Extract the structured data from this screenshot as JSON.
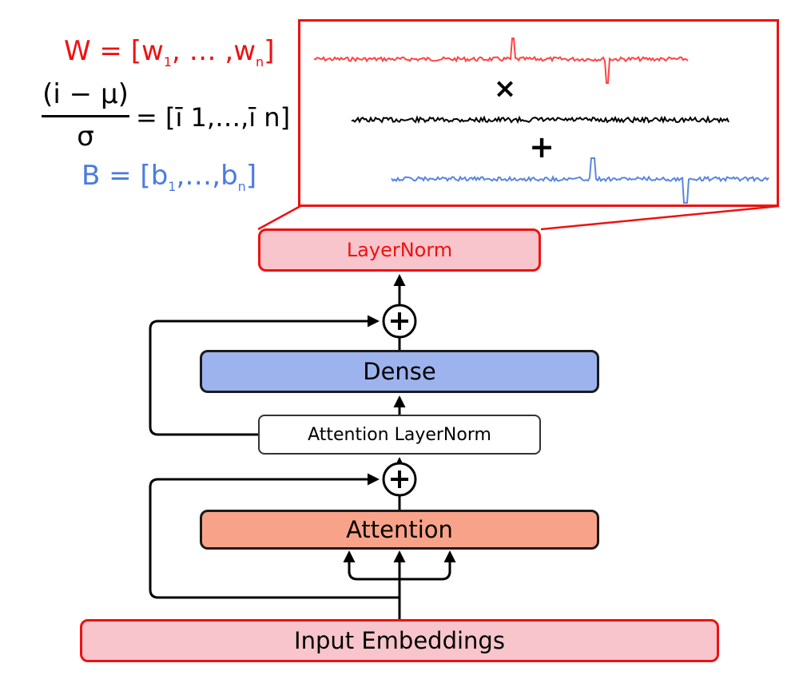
{
  "equations": {
    "weights": {
      "lhs": "W",
      "open": " = [w",
      "sub1": "1",
      "mid": ", … ,w",
      "subn": "n",
      "close": "]",
      "color": "#ee1111"
    },
    "normalized": {
      "numerator": "(i − μ)",
      "denominator": "σ",
      "rhs": "= [ī 1,…,ī n]"
    },
    "bias": {
      "lhs": "B",
      "open": " = [b",
      "sub1": "1",
      "mid": ",…,b",
      "subn": "n",
      "close": "]",
      "color": "#4a7be0"
    }
  },
  "zoom": {
    "operators": {
      "multiply": "×",
      "add": "+"
    },
    "signal_colors": {
      "weights": "#ff4444",
      "normalized": "#000000",
      "bias": "#5b86e0"
    }
  },
  "blocks": {
    "layernorm": "LayerNorm",
    "dense": "Dense",
    "attention_layernorm": "Attention LayerNorm",
    "attention": "Attention",
    "input_embeddings": "Input Embeddings"
  },
  "colors": {
    "layernorm_fill": "#f7c5cb",
    "layernorm_border": "#ee1111",
    "dense_fill": "#9db3ee",
    "attention_fill": "#f8a389"
  }
}
